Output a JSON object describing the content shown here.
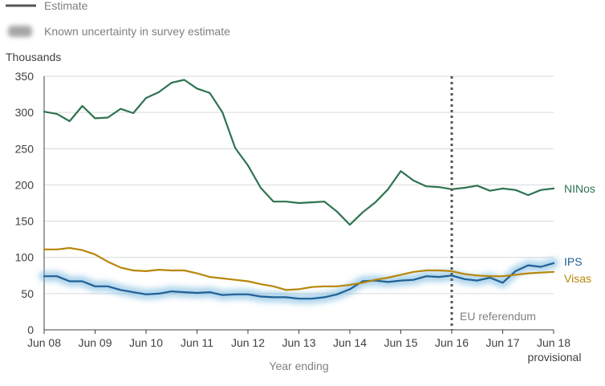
{
  "chart_data": {
    "type": "line",
    "legend": {
      "placement": "top-left",
      "items": [
        {
          "label": "Estimate",
          "symbol": "solid-line"
        },
        {
          "label": "Known uncertainty in survey estimate",
          "symbol": "blurred-band"
        }
      ]
    },
    "ylabel": "Thousands",
    "xlabel": "Year ending",
    "ylim": [
      0,
      350
    ],
    "yticks": [
      0,
      50,
      100,
      150,
      200,
      250,
      300,
      350
    ],
    "xlim": [
      0,
      40
    ],
    "xticks": [
      {
        "x": 0,
        "label": "Jun 08"
      },
      {
        "x": 4,
        "label": "Jun 09"
      },
      {
        "x": 8,
        "label": "Jun 10"
      },
      {
        "x": 12,
        "label": "Jun 11"
      },
      {
        "x": 16,
        "label": "Jun 12"
      },
      {
        "x": 20,
        "label": "Jun 13"
      },
      {
        "x": 24,
        "label": "Jun 14"
      },
      {
        "x": 28,
        "label": "Jun 15"
      },
      {
        "x": 32,
        "label": "Jun 16"
      },
      {
        "x": 36,
        "label": "Jun 17"
      },
      {
        "x": 40,
        "label": "Jun 18"
      }
    ],
    "xtick_sublabel": {
      "x": 40,
      "label": "provisional"
    },
    "grid": "horizontal",
    "annotations": [
      {
        "x": 32,
        "label": "EU referendum",
        "style": "dotted-vertical-line"
      }
    ],
    "series": [
      {
        "name": "NINos",
        "color": "#2e7350",
        "values": [
          [
            0,
            301
          ],
          [
            1,
            298
          ],
          [
            2,
            288
          ],
          [
            3,
            309
          ],
          [
            4,
            292
          ],
          [
            5,
            293
          ],
          [
            6,
            305
          ],
          [
            7,
            299
          ],
          [
            8,
            320
          ],
          [
            9,
            328
          ],
          [
            10,
            341
          ],
          [
            11,
            345
          ],
          [
            12,
            333
          ],
          [
            13,
            327
          ],
          [
            14,
            300
          ],
          [
            15,
            251
          ],
          [
            16,
            227
          ],
          [
            17,
            196
          ],
          [
            18,
            177
          ],
          [
            19,
            177
          ],
          [
            20,
            175
          ],
          [
            21,
            176
          ],
          [
            22,
            177
          ],
          [
            23,
            163
          ],
          [
            24,
            145
          ],
          [
            25,
            162
          ],
          [
            26,
            176
          ],
          [
            27,
            194
          ],
          [
            28,
            219
          ],
          [
            29,
            206
          ],
          [
            30,
            198
          ],
          [
            31,
            197
          ],
          [
            32,
            194
          ],
          [
            33,
            196
          ],
          [
            34,
            199
          ],
          [
            35,
            192
          ],
          [
            36,
            195
          ],
          [
            37,
            193
          ],
          [
            38,
            186
          ],
          [
            39,
            193
          ],
          [
            40,
            195
          ]
        ]
      },
      {
        "name": "IPS",
        "color": "#206095",
        "uncertainty": true,
        "values": [
          [
            0,
            74
          ],
          [
            1,
            74
          ],
          [
            2,
            67
          ],
          [
            3,
            67
          ],
          [
            4,
            60
          ],
          [
            5,
            60
          ],
          [
            6,
            55
          ],
          [
            7,
            52
          ],
          [
            8,
            49
          ],
          [
            9,
            50
          ],
          [
            10,
            53
          ],
          [
            11,
            52
          ],
          [
            12,
            51
          ],
          [
            13,
            52
          ],
          [
            14,
            48
          ],
          [
            15,
            49
          ],
          [
            16,
            49
          ],
          [
            17,
            46
          ],
          [
            18,
            45
          ],
          [
            19,
            45
          ],
          [
            20,
            43
          ],
          [
            21,
            43
          ],
          [
            22,
            45
          ],
          [
            23,
            49
          ],
          [
            24,
            56
          ],
          [
            25,
            67
          ],
          [
            26,
            68
          ],
          [
            27,
            66
          ],
          [
            28,
            68
          ],
          [
            29,
            69
          ],
          [
            30,
            74
          ],
          [
            31,
            73
          ],
          [
            32,
            75
          ],
          [
            33,
            70
          ],
          [
            34,
            68
          ],
          [
            35,
            72
          ],
          [
            36,
            65
          ],
          [
            37,
            81
          ],
          [
            38,
            89
          ],
          [
            39,
            87
          ],
          [
            40,
            92
          ]
        ]
      },
      {
        "name": "Visas",
        "color": "#b8860b",
        "values": [
          [
            0,
            111
          ],
          [
            1,
            111
          ],
          [
            2,
            113
          ],
          [
            3,
            110
          ],
          [
            4,
            104
          ],
          [
            5,
            94
          ],
          [
            6,
            86
          ],
          [
            7,
            82
          ],
          [
            8,
            81
          ],
          [
            9,
            83
          ],
          [
            10,
            82
          ],
          [
            11,
            82
          ],
          [
            12,
            78
          ],
          [
            13,
            73
          ],
          [
            14,
            71
          ],
          [
            15,
            69
          ],
          [
            16,
            67
          ],
          [
            17,
            63
          ],
          [
            18,
            60
          ],
          [
            19,
            55
          ],
          [
            20,
            56
          ],
          [
            21,
            59
          ],
          [
            22,
            60
          ],
          [
            23,
            60
          ],
          [
            24,
            62
          ],
          [
            25,
            65
          ],
          [
            26,
            69
          ],
          [
            27,
            72
          ],
          [
            28,
            76
          ],
          [
            29,
            80
          ],
          [
            30,
            82
          ],
          [
            31,
            82
          ],
          [
            32,
            81
          ],
          [
            33,
            77
          ],
          [
            34,
            75
          ],
          [
            35,
            74
          ],
          [
            36,
            74
          ],
          [
            37,
            76
          ],
          [
            38,
            78
          ],
          [
            39,
            79
          ],
          [
            40,
            80
          ]
        ]
      }
    ],
    "series_labels": [
      {
        "series": "NINos",
        "label": "NINos"
      },
      {
        "series": "IPS",
        "label": "IPS"
      },
      {
        "series": "Visas",
        "label": "Visas"
      }
    ]
  }
}
